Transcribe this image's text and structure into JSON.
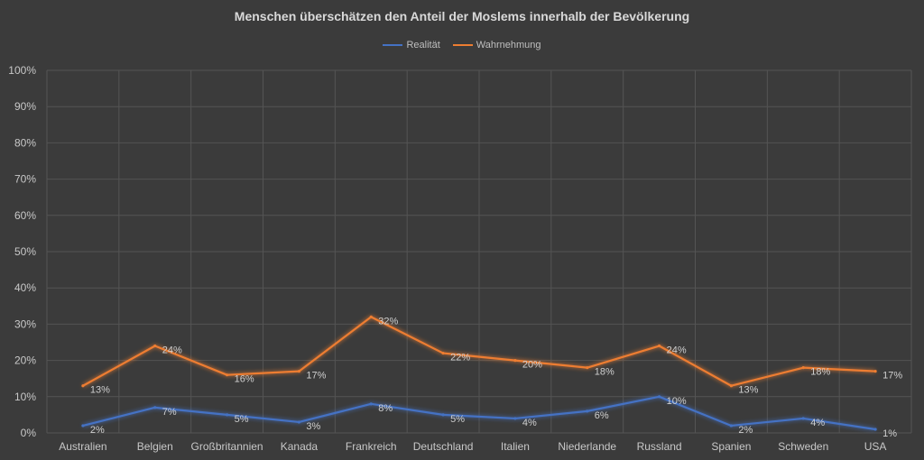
{
  "chart_data": {
    "type": "line",
    "title": "Menschen überschätzen den Anteil der Moslems innerhalb der Bevölkerung",
    "categories": [
      "Australien",
      "Belgien",
      "Großbritannien",
      "Kanada",
      "Frankreich",
      "Deutschland",
      "Italien",
      "Niederlande",
      "Russland",
      "Spanien",
      "Schweden",
      "USA"
    ],
    "series": [
      {
        "name": "Realität",
        "color": "#4472c4",
        "values": [
          2,
          7,
          5,
          3,
          8,
          5,
          4,
          6,
          10,
          2,
          4,
          1
        ]
      },
      {
        "name": "Wahrnehmung",
        "color": "#ed7d31",
        "values": [
          13,
          24,
          16,
          17,
          32,
          22,
          20,
          18,
          24,
          13,
          18,
          17
        ]
      }
    ],
    "ylim": [
      0,
      100
    ],
    "yticks": [
      "0%",
      "10%",
      "20%",
      "30%",
      "40%",
      "50%",
      "60%",
      "70%",
      "80%",
      "90%",
      "100%"
    ],
    "grid": true,
    "legend_position": "top",
    "value_suffix": "%"
  }
}
